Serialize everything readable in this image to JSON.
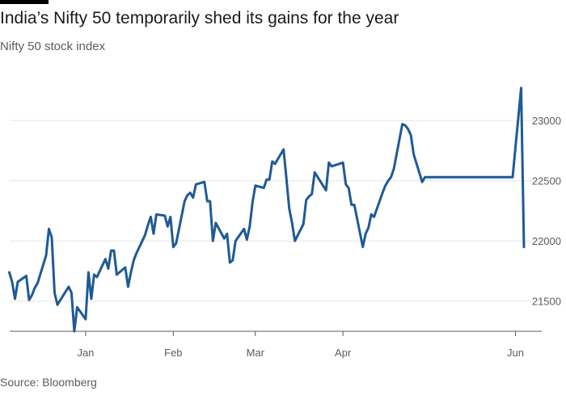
{
  "header": {
    "title": "India’s Nifty 50 temporarily shed its gains for the year",
    "subtitle": "Nifty 50 stock index"
  },
  "footer": {
    "source": "Source: Bloomberg"
  },
  "colors": {
    "line": "#1f5a96",
    "grid": "#e6e6e6",
    "axis": "#5c5c5c",
    "topbar": "#000000"
  },
  "chart_data": {
    "type": "line",
    "title": "India’s Nifty 50 temporarily shed its gains for the year",
    "subtitle": "Nifty 50 stock index",
    "xlabel": "",
    "ylabel": "",
    "ylim": [
      21250,
      23350
    ],
    "yticks": [
      21500,
      22000,
      22500,
      23000
    ],
    "ytick_labels": [
      "21500",
      "22000",
      "22500",
      "23000"
    ],
    "xlim": [
      "2023-12-04",
      "2024-06-04"
    ],
    "xticks": [
      "2024-01-01",
      "2024-02-01",
      "2024-03-01",
      "2024-04-01",
      "2024-06-01"
    ],
    "xtick_labels": [
      "Jan",
      "Feb",
      "Mar",
      "Apr",
      "Jun"
    ],
    "grid": true,
    "series": [
      {
        "name": "Nifty 50",
        "points": [
          [
            "2023-12-05",
            21740
          ],
          [
            "2023-12-06",
            21660
          ],
          [
            "2023-12-07",
            21520
          ],
          [
            "2023-12-08",
            21660
          ],
          [
            "2023-12-11",
            21710
          ],
          [
            "2023-12-12",
            21510
          ],
          [
            "2023-12-13",
            21550
          ],
          [
            "2023-12-14",
            21610
          ],
          [
            "2023-12-15",
            21650
          ],
          [
            "2023-12-18",
            21880
          ],
          [
            "2023-12-19",
            22100
          ],
          [
            "2023-12-20",
            22030
          ],
          [
            "2023-12-21",
            21570
          ],
          [
            "2023-12-22",
            21470
          ],
          [
            "2023-12-26",
            21620
          ],
          [
            "2023-12-27",
            21570
          ],
          [
            "2023-12-28",
            21250
          ],
          [
            "2023-12-29",
            21450
          ],
          [
            "2024-01-01",
            21350
          ],
          [
            "2024-01-02",
            21740
          ],
          [
            "2024-01-03",
            21520
          ],
          [
            "2024-01-04",
            21720
          ],
          [
            "2024-01-05",
            21700
          ],
          [
            "2024-01-08",
            21850
          ],
          [
            "2024-01-09",
            21770
          ],
          [
            "2024-01-10",
            21920
          ],
          [
            "2024-01-11",
            21920
          ],
          [
            "2024-01-12",
            21720
          ],
          [
            "2024-01-15",
            21780
          ],
          [
            "2024-01-16",
            21620
          ],
          [
            "2024-01-17",
            21740
          ],
          [
            "2024-01-18",
            21840
          ],
          [
            "2024-01-19",
            21900
          ],
          [
            "2024-01-22",
            22050
          ],
          [
            "2024-01-23",
            22130
          ],
          [
            "2024-01-24",
            22200
          ],
          [
            "2024-01-25",
            22060
          ],
          [
            "2024-01-26",
            22220
          ],
          [
            "2024-01-29",
            22210
          ],
          [
            "2024-01-30",
            22120
          ],
          [
            "2024-01-31",
            22200
          ],
          [
            "2024-02-01",
            21950
          ],
          [
            "2024-02-02",
            21980
          ],
          [
            "2024-02-05",
            22330
          ],
          [
            "2024-02-06",
            22380
          ],
          [
            "2024-02-07",
            22400
          ],
          [
            "2024-02-08",
            22360
          ],
          [
            "2024-02-09",
            22470
          ],
          [
            "2024-02-12",
            22490
          ],
          [
            "2024-02-13",
            22330
          ],
          [
            "2024-02-14",
            22330
          ],
          [
            "2024-02-15",
            22000
          ],
          [
            "2024-02-16",
            22150
          ],
          [
            "2024-02-19",
            22020
          ],
          [
            "2024-02-20",
            22060
          ],
          [
            "2024-02-21",
            21820
          ],
          [
            "2024-02-22",
            21840
          ],
          [
            "2024-02-23",
            22000
          ],
          [
            "2024-02-26",
            22100
          ],
          [
            "2024-02-27",
            22010
          ],
          [
            "2024-02-28",
            22120
          ],
          [
            "2024-02-29",
            22320
          ],
          [
            "2024-03-01",
            22460
          ],
          [
            "2024-03-04",
            22440
          ],
          [
            "2024-03-05",
            22510
          ],
          [
            "2024-03-06",
            22510
          ],
          [
            "2024-03-07",
            22660
          ],
          [
            "2024-03-08",
            22640
          ],
          [
            "2024-03-11",
            22760
          ],
          [
            "2024-03-12",
            22520
          ],
          [
            "2024-03-13",
            22270
          ],
          [
            "2024-03-14",
            22150
          ],
          [
            "2024-03-15",
            22000
          ],
          [
            "2024-03-18",
            22140
          ],
          [
            "2024-03-19",
            22340
          ],
          [
            "2024-03-20",
            22370
          ],
          [
            "2024-03-21",
            22390
          ],
          [
            "2024-03-22",
            22570
          ],
          [
            "2024-03-26",
            22420
          ],
          [
            "2024-03-27",
            22650
          ],
          [
            "2024-03-28",
            22620
          ],
          [
            "2024-04-01",
            22650
          ],
          [
            "2024-04-02",
            22470
          ],
          [
            "2024-04-03",
            22440
          ],
          [
            "2024-04-04",
            22300
          ],
          [
            "2024-04-05",
            22300
          ],
          [
            "2024-04-08",
            21950
          ],
          [
            "2024-04-09",
            22060
          ],
          [
            "2024-04-10",
            22110
          ],
          [
            "2024-04-11",
            22220
          ],
          [
            "2024-04-12",
            22200
          ],
          [
            "2024-04-15",
            22400
          ],
          [
            "2024-04-16",
            22460
          ],
          [
            "2024-04-17",
            22500
          ],
          [
            "2024-04-18",
            22530
          ],
          [
            "2024-04-19",
            22600
          ],
          [
            "2024-04-22",
            22970
          ],
          [
            "2024-04-23",
            22960
          ],
          [
            "2024-04-24",
            22930
          ],
          [
            "2024-04-25",
            22880
          ],
          [
            "2024-04-26",
            22720
          ],
          [
            "2024-04-29",
            22490
          ],
          [
            "2024-04-30",
            22530
          ],
          [
            "2024-05-31",
            22530
          ],
          [
            "2024-06-03",
            23270
          ],
          [
            "2024-06-04",
            21950
          ]
        ]
      }
    ]
  }
}
